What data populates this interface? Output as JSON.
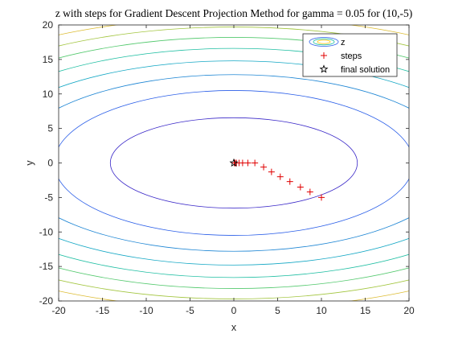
{
  "chart_data": {
    "type": "contour",
    "title": "z with steps for Gradient Descent Projection Method for gamma = 0.05 for (10,-5)",
    "xlabel": "x",
    "ylabel": "y",
    "xlim": [
      -20,
      20
    ],
    "ylim": [
      -20,
      20
    ],
    "xticks": [
      -20,
      -15,
      -10,
      -5,
      0,
      5,
      10,
      15,
      20
    ],
    "yticks": [
      -20,
      -15,
      -10,
      -5,
      0,
      5,
      10,
      15,
      20
    ],
    "grid": false,
    "legend": {
      "placement": "top-right",
      "entries": [
        {
          "label": "z",
          "marker": "contour-swatch"
        },
        {
          "label": "steps",
          "marker": "plus",
          "color": "#e00000"
        },
        {
          "label": "final solution",
          "marker": "pentagram",
          "color": "#000000"
        }
      ]
    },
    "contours": {
      "function": "z = x^2 + 4*y^2 (elliptic)",
      "center": [
        0,
        0
      ],
      "levels": [
        {
          "semi_x": 14.1,
          "semi_y": 6.55,
          "color": "#3a28c8"
        },
        {
          "semi_x": 20.5,
          "semi_y": 10.5,
          "color": "#2a5ee8"
        },
        {
          "semi_x": 25.5,
          "semi_y": 12.8,
          "color": "#1e86d4"
        },
        {
          "semi_x": 29.7,
          "semi_y": 14.8,
          "color": "#13a7c4"
        },
        {
          "semi_x": 33.2,
          "semi_y": 16.6,
          "color": "#1ebea2"
        },
        {
          "semi_x": 36.4,
          "semi_y": 18.2,
          "color": "#54c96e"
        },
        {
          "semi_x": 39.3,
          "semi_y": 19.7,
          "color": "#a2c53e"
        },
        {
          "semi_x": 42.0,
          "semi_y": 21.1,
          "color": "#dcbb30"
        },
        {
          "semi_x": 44.6,
          "semi_y": 22.4,
          "color": "#f5c818"
        }
      ]
    },
    "series": [
      {
        "name": "steps",
        "marker": "+",
        "color": "#e00000",
        "x": [
          10,
          8.7,
          7.6,
          6.4,
          5.3,
          4.3,
          3.4,
          2.4,
          1.6,
          1.0,
          0.6,
          0.3,
          0.15,
          0.05
        ],
        "y": [
          -5,
          -4.2,
          -3.5,
          -2.7,
          -2.0,
          -1.3,
          -0.6,
          0.0,
          0.0,
          0.0,
          0.0,
          0.0,
          0.0,
          0.0
        ]
      },
      {
        "name": "final solution",
        "marker": "pentagram",
        "color": "#000000",
        "x": [
          0
        ],
        "y": [
          0
        ]
      }
    ]
  }
}
